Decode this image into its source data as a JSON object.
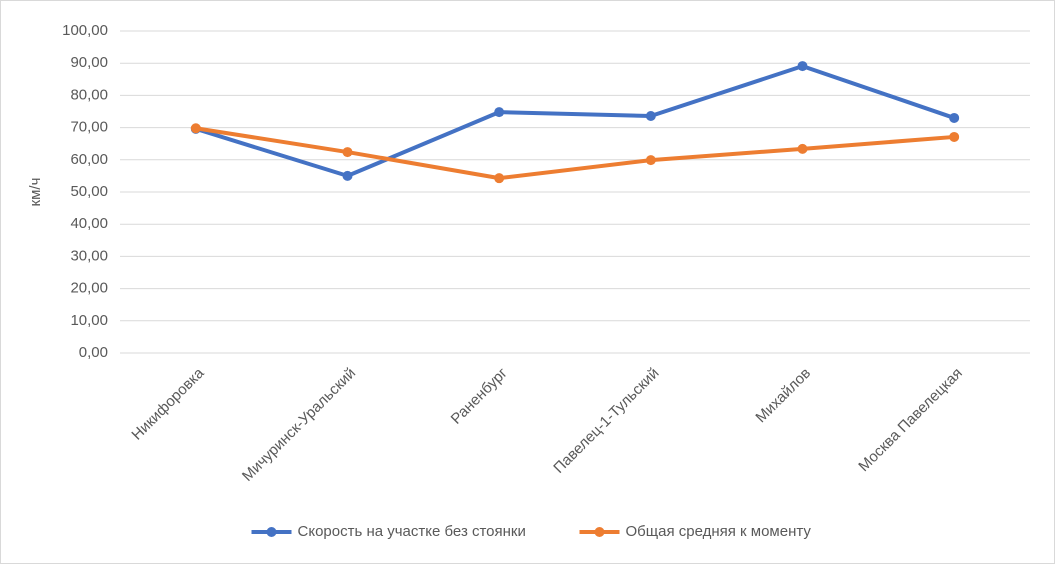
{
  "chart_data": {
    "type": "line",
    "y_label": "км/ч",
    "categories": [
      "Никифоровка",
      "Мичуринск-Уральский",
      "Раненбург",
      "Павелец-1-Тульский",
      "Михайлов",
      "Москва Павелецкая"
    ],
    "series": [
      {
        "name": "Скорость на участке без стоянки",
        "color": "#4472c4",
        "values": [
          69.6,
          55.0,
          74.8,
          73.6,
          89.1,
          73.0
        ]
      },
      {
        "name": "Общая средняя к моменту",
        "color": "#ed7d31",
        "values": [
          69.8,
          62.4,
          54.3,
          59.9,
          63.4,
          67.1
        ]
      }
    ],
    "ylim": [
      0,
      100
    ],
    "yticks": [
      {
        "value": 0,
        "label": "0,00"
      },
      {
        "value": 10,
        "label": "10,00"
      },
      {
        "value": 20,
        "label": "20,00"
      },
      {
        "value": 30,
        "label": "30,00"
      },
      {
        "value": 40,
        "label": "40,00"
      },
      {
        "value": 50,
        "label": "50,00"
      },
      {
        "value": 60,
        "label": "60,00"
      },
      {
        "value": 70,
        "label": "70,00"
      },
      {
        "value": 80,
        "label": "80,00"
      },
      {
        "value": 90,
        "label": "90,00"
      },
      {
        "value": 100,
        "label": "100,00"
      }
    ],
    "grid": true,
    "legend": "bottom"
  }
}
